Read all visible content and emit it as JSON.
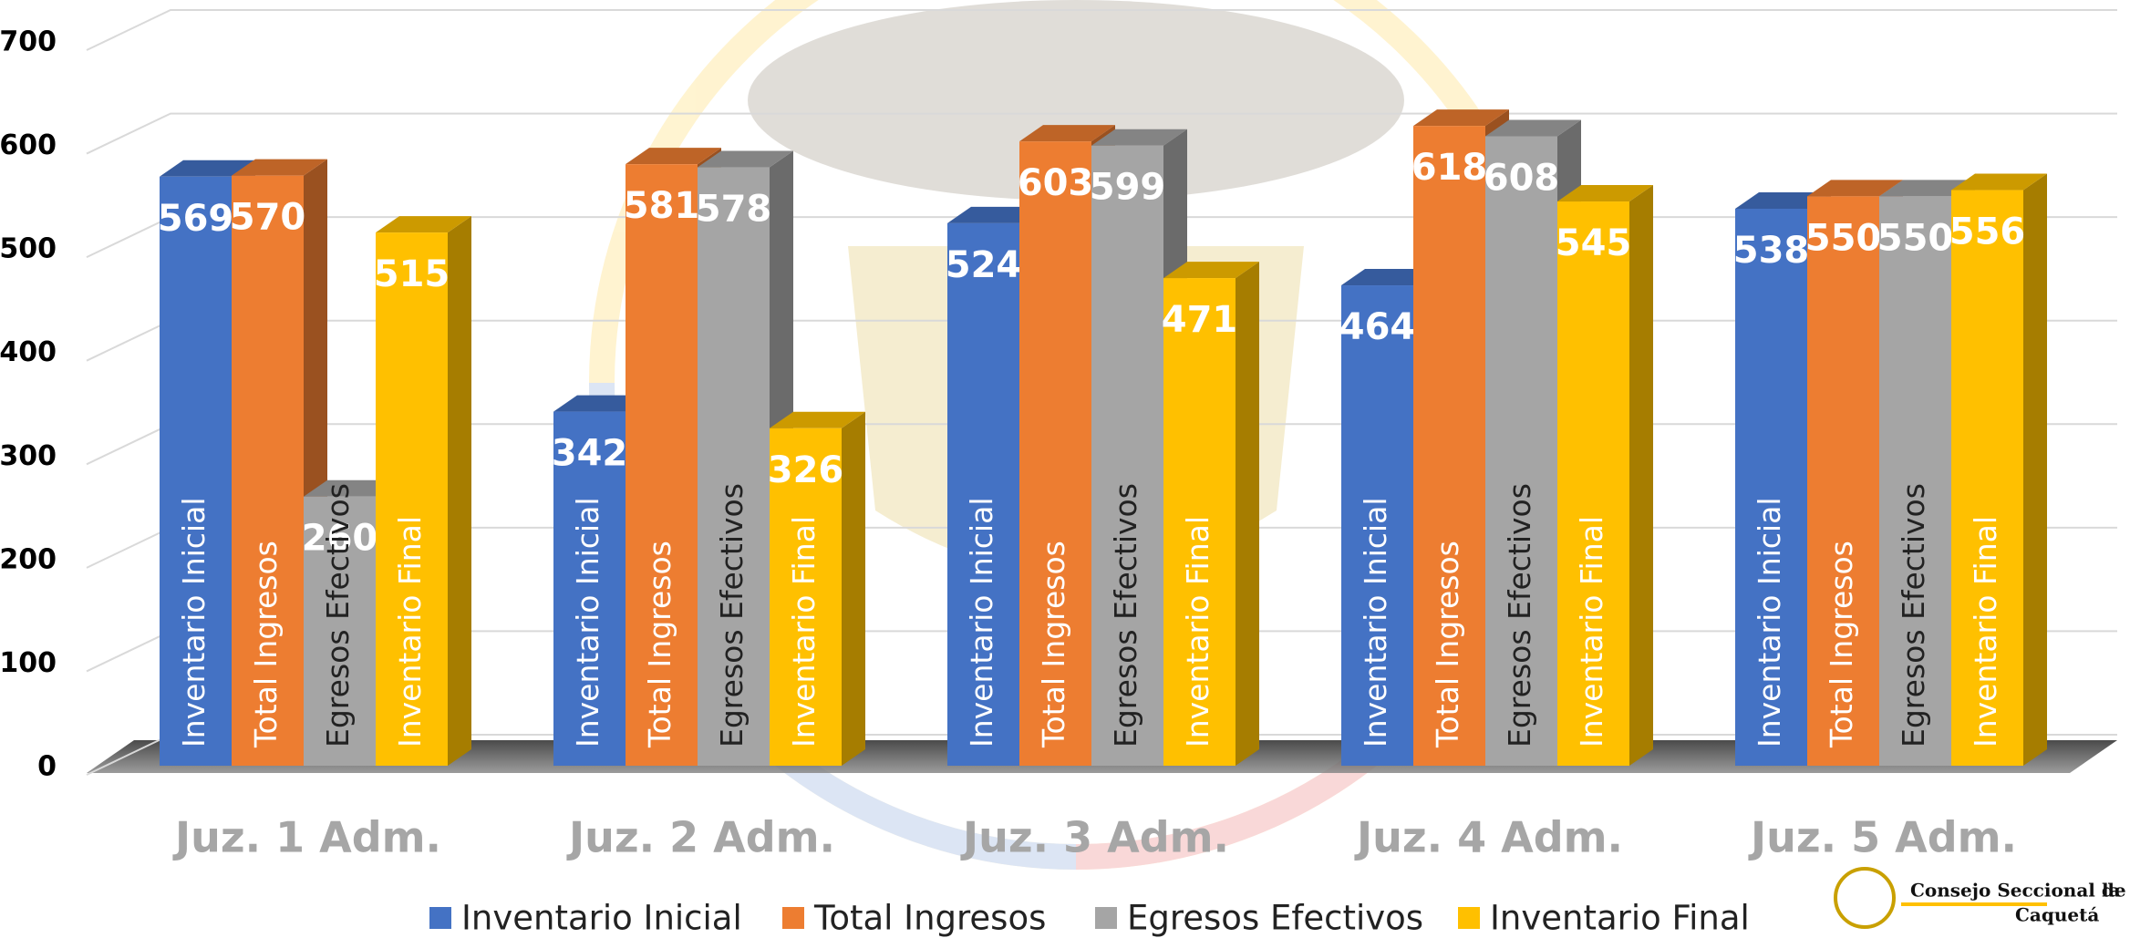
{
  "chart_data": {
    "type": "bar3d",
    "categories": [
      "Juz. 1 Adm.",
      "Juz. 2 Adm.",
      "Juz. 3 Adm.",
      "Juz. 4 Adm.",
      "Juz. 5 Adm."
    ],
    "series": [
      {
        "name": "Inventario Inicial",
        "color": "#4472c4",
        "values": [
          569,
          342,
          524,
          464,
          538
        ]
      },
      {
        "name": "Total Ingresos",
        "color": "#ed7d31",
        "values": [
          570,
          581,
          603,
          618,
          550
        ]
      },
      {
        "name": "Egresos Efectivos",
        "color": "#a5a5a5",
        "values": [
          260,
          578,
          599,
          608,
          550
        ]
      },
      {
        "name": "Inventario Final",
        "color": "#ffc000",
        "values": [
          515,
          326,
          471,
          545,
          556
        ]
      }
    ],
    "ylim": [
      0,
      700
    ],
    "yticks": [
      0,
      100,
      200,
      300,
      400,
      500,
      600,
      700
    ],
    "grid": true,
    "legend": "bottom",
    "logo": {
      "line1": "Consejo Seccional de",
      "line1b": "la",
      "line2": "Caquetá"
    }
  }
}
